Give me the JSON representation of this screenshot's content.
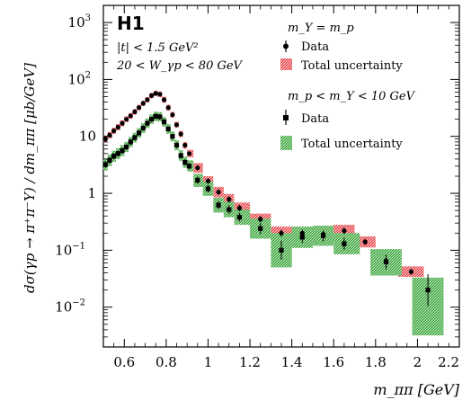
{
  "chart_data": {
    "type": "scatter",
    "logo": "H1",
    "cuts": [
      "|t| < 1.5 GeV²",
      "20 < W_γp < 80 GeV"
    ],
    "xlabel": "m_ππ [GeV]",
    "ylabel": "dσ(γp → π⁺π⁻Y) / dm_ππ  [μb/GeV]",
    "xlim": [
      0.5,
      2.2
    ],
    "ylim": [
      0.002,
      2000
    ],
    "yscale": "log",
    "x_ticks": [
      0.6,
      0.8,
      1,
      1.2,
      1.4,
      1.6,
      1.8,
      2,
      2.2
    ],
    "x_tick_labels": [
      "0.6",
      "0.8",
      "1",
      "1.2",
      "1.4",
      "1.6",
      "1.8",
      "2",
      "2.2"
    ],
    "y_ticks": [
      0.01,
      0.1,
      1,
      10,
      100,
      1000
    ],
    "legend_placement": "top-right",
    "legend": {
      "group1_title": "m_Y = m_p",
      "group2_title": "m_p < m_Y < 10 GeV",
      "data_label": "Data",
      "unc_label": "Total uncertainty"
    },
    "series": [
      {
        "color": "#d62728",
        "marker_color": "#000000",
        "points": [
          {
            "x": 0.51,
            "y": 9.0,
            "lo": 7.8,
            "hi": 10.4
          },
          {
            "x": 0.53,
            "y": 10.5,
            "lo": 9.2,
            "hi": 12.0
          },
          {
            "x": 0.55,
            "y": 12.5,
            "lo": 11.0,
            "hi": 14.2
          },
          {
            "x": 0.57,
            "y": 14.5,
            "lo": 12.8,
            "hi": 16.4
          },
          {
            "x": 0.59,
            "y": 17.0,
            "lo": 15.0,
            "hi": 19.2
          },
          {
            "x": 0.61,
            "y": 20.0,
            "lo": 17.8,
            "hi": 22.5
          },
          {
            "x": 0.63,
            "y": 23.0,
            "lo": 20.5,
            "hi": 25.8
          },
          {
            "x": 0.65,
            "y": 27.0,
            "lo": 24.0,
            "hi": 30.3
          },
          {
            "x": 0.67,
            "y": 32.0,
            "lo": 28.5,
            "hi": 35.9
          },
          {
            "x": 0.69,
            "y": 38.0,
            "lo": 34.0,
            "hi": 42.5
          },
          {
            "x": 0.71,
            "y": 44.0,
            "lo": 39.5,
            "hi": 49.0
          },
          {
            "x": 0.73,
            "y": 52.0,
            "lo": 46.5,
            "hi": 58.0
          },
          {
            "x": 0.75,
            "y": 57.0,
            "lo": 51.0,
            "hi": 63.5
          },
          {
            "x": 0.77,
            "y": 55.0,
            "lo": 49.0,
            "hi": 61.5
          },
          {
            "x": 0.79,
            "y": 44.0,
            "lo": 39.0,
            "hi": 49.5
          },
          {
            "x": 0.81,
            "y": 32.0,
            "lo": 28.5,
            "hi": 36.0
          },
          {
            "x": 0.83,
            "y": 24.0,
            "lo": 21.3,
            "hi": 27.0
          },
          {
            "x": 0.85,
            "y": 16.0,
            "lo": 14.2,
            "hi": 18.0
          },
          {
            "x": 0.87,
            "y": 11.0,
            "lo": 9.7,
            "hi": 12.5
          },
          {
            "x": 0.89,
            "y": 7.0,
            "lo": 6.1,
            "hi": 8.0
          },
          {
            "x": 0.91,
            "y": 5.0,
            "lo": 4.3,
            "hi": 5.8
          },
          {
            "x": 0.95,
            "y": 2.8,
            "lo": 2.3,
            "hi": 3.4
          },
          {
            "x": 1.0,
            "y": 1.65,
            "lo": 1.35,
            "hi": 2.0
          },
          {
            "x": 1.05,
            "y": 1.05,
            "lo": 0.85,
            "hi": 1.3
          },
          {
            "x": 1.1,
            "y": 0.78,
            "lo": 0.62,
            "hi": 0.97
          },
          {
            "x": 1.15,
            "y": 0.55,
            "lo": 0.44,
            "hi": 0.69
          },
          {
            "x": 1.25,
            "y": 0.35,
            "lo": 0.28,
            "hi": 0.44
          },
          {
            "x": 1.35,
            "y": 0.2,
            "lo": 0.155,
            "hi": 0.26
          },
          {
            "x": 1.45,
            "y": 0.2,
            "lo": 0.155,
            "hi": 0.26
          },
          {
            "x": 1.55,
            "y": 0.19,
            "lo": 0.15,
            "hi": 0.24
          },
          {
            "x": 1.65,
            "y": 0.22,
            "lo": 0.175,
            "hi": 0.28
          },
          {
            "x": 1.75,
            "y": 0.14,
            "lo": 0.112,
            "hi": 0.175
          },
          {
            "x": 1.85,
            "y": 0.065,
            "lo": 0.052,
            "hi": 0.081
          },
          {
            "x": 1.97,
            "y": 0.042,
            "lo": 0.034,
            "hi": 0.052
          }
        ]
      },
      {
        "color": "#2ca02c",
        "marker_color": "#000000",
        "points": [
          {
            "x": 0.51,
            "y": 3.2,
            "lo": 2.5,
            "hi": 4.1
          },
          {
            "x": 0.53,
            "y": 3.8,
            "lo": 3.0,
            "hi": 4.8
          },
          {
            "x": 0.55,
            "y": 4.5,
            "lo": 3.6,
            "hi": 5.6
          },
          {
            "x": 0.57,
            "y": 5.0,
            "lo": 4.0,
            "hi": 6.2
          },
          {
            "x": 0.59,
            "y": 5.6,
            "lo": 4.5,
            "hi": 7.0
          },
          {
            "x": 0.61,
            "y": 6.5,
            "lo": 5.3,
            "hi": 8.0
          },
          {
            "x": 0.63,
            "y": 8.0,
            "lo": 6.5,
            "hi": 9.8
          },
          {
            "x": 0.65,
            "y": 9.5,
            "lo": 7.8,
            "hi": 11.6
          },
          {
            "x": 0.67,
            "y": 11.5,
            "lo": 9.5,
            "hi": 14.0
          },
          {
            "x": 0.69,
            "y": 14.0,
            "lo": 11.5,
            "hi": 17.0
          },
          {
            "x": 0.71,
            "y": 17.0,
            "lo": 14.0,
            "hi": 20.6
          },
          {
            "x": 0.73,
            "y": 20.0,
            "lo": 16.5,
            "hi": 24.2
          },
          {
            "x": 0.75,
            "y": 22.5,
            "lo": 18.6,
            "hi": 27.2
          },
          {
            "x": 0.77,
            "y": 22.0,
            "lo": 18.2,
            "hi": 26.6
          },
          {
            "x": 0.79,
            "y": 18.0,
            "lo": 14.8,
            "hi": 21.8
          },
          {
            "x": 0.81,
            "y": 13.5,
            "lo": 11.1,
            "hi": 16.4
          },
          {
            "x": 0.83,
            "y": 10.0,
            "lo": 8.2,
            "hi": 12.2
          },
          {
            "x": 0.85,
            "y": 7.0,
            "lo": 5.7,
            "hi": 8.6
          },
          {
            "x": 0.87,
            "y": 4.6,
            "lo": 3.7,
            "hi": 5.7
          },
          {
            "x": 0.89,
            "y": 3.5,
            "lo": 2.8,
            "hi": 4.4
          },
          {
            "x": 0.91,
            "y": 3.0,
            "lo": 2.4,
            "hi": 3.8
          },
          {
            "x": 0.95,
            "y": 1.7,
            "lo": 1.3,
            "hi": 2.2
          },
          {
            "x": 1.0,
            "y": 1.2,
            "lo": 0.9,
            "hi": 1.6
          },
          {
            "x": 1.05,
            "y": 0.62,
            "lo": 0.46,
            "hi": 0.84
          },
          {
            "x": 1.1,
            "y": 0.52,
            "lo": 0.38,
            "hi": 0.71
          },
          {
            "x": 1.15,
            "y": 0.38,
            "lo": 0.28,
            "hi": 0.52
          },
          {
            "x": 1.25,
            "y": 0.24,
            "lo": 0.16,
            "hi": 0.36
          },
          {
            "x": 1.35,
            "y": 0.1,
            "lo": 0.05,
            "hi": 0.2
          },
          {
            "x": 1.45,
            "y": 0.17,
            "lo": 0.11,
            "hi": 0.26
          },
          {
            "x": 1.55,
            "y": 0.18,
            "lo": 0.12,
            "hi": 0.27
          },
          {
            "x": 1.65,
            "y": 0.13,
            "lo": 0.085,
            "hi": 0.2
          },
          {
            "x": 1.85,
            "y": 0.062,
            "lo": 0.036,
            "hi": 0.105
          },
          {
            "x": 2.05,
            "y": 0.02,
            "lo": 0.0032,
            "hi": 0.033
          }
        ]
      }
    ]
  }
}
